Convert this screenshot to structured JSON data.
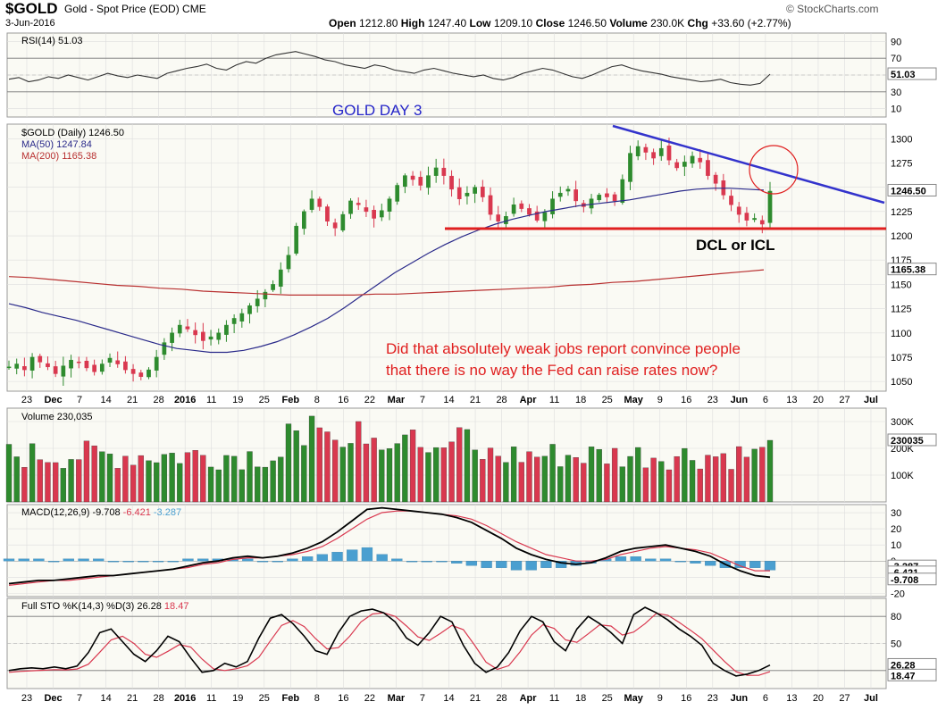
{
  "header": {
    "symbol": "$GOLD",
    "name": "Gold - Spot Price (EOD) CME",
    "date": "3-Jun-2016",
    "open_label": "Open",
    "open": "1212.80",
    "high_label": "High",
    "high": "1247.40",
    "low_label": "Low",
    "low": "1209.10",
    "close_label": "Close",
    "close": "1246.50",
    "volume_label": "Volume",
    "volume": "230.0K",
    "chg_label": "Chg",
    "chg": "+33.60 (+2.77%)",
    "brand": "© StockCharts.com"
  },
  "annotations": {
    "title": "GOLD DAY 3",
    "cycle": "DCL or ICL",
    "comment_line1": "Did that absolutely weak jobs report convince people",
    "comment_line2": "that there is no way the Fed can raise rates now?"
  },
  "colors": {
    "up": "#2e8b2e",
    "down": "#d9384f",
    "ma50": "#2a2a8a",
    "ma200": "#b83030",
    "annotation_red": "#e02020",
    "annotation_blue": "#2424c8",
    "macd_hist": "#4a9fd0",
    "panel_bg": "#fafaf4"
  },
  "chart_data": [
    {
      "type": "line",
      "title": "RSI(14) 51.03",
      "yticks": [
        90,
        70,
        50,
        30,
        10
      ],
      "ylim": [
        0,
        100
      ],
      "last_label": "51.03",
      "series": [
        {
          "name": "RSI(14)",
          "values": [
            45,
            47,
            42,
            44,
            48,
            46,
            50,
            47,
            44,
            48,
            52,
            49,
            47,
            50,
            48,
            46,
            52,
            55,
            58,
            60,
            63,
            58,
            56,
            62,
            66,
            64,
            70,
            74,
            76,
            78,
            75,
            72,
            68,
            66,
            62,
            60,
            58,
            62,
            60,
            56,
            54,
            52,
            56,
            58,
            55,
            52,
            50,
            48,
            50,
            46,
            44,
            47,
            52,
            55,
            58,
            56,
            52,
            48,
            46,
            50,
            55,
            60,
            62,
            58,
            55,
            53,
            51,
            48,
            46,
            44,
            42,
            43,
            45,
            41,
            39,
            38,
            40,
            51
          ]
        }
      ]
    },
    {
      "type": "line",
      "title": "$GOLD (Daily) 1246.50",
      "legend": [
        "$GOLD (Daily) 1246.50",
        "MA(50) 1247.84",
        "MA(200) 1165.38"
      ],
      "yticks": [
        1300,
        1275,
        1250,
        1225,
        1200,
        1175,
        1150,
        1125,
        1100,
        1075,
        1050
      ],
      "ylim": [
        1040,
        1315
      ],
      "x_tick_labels": [
        "23",
        "Dec",
        "7",
        "14",
        "21",
        "28",
        "2016",
        "11",
        "19",
        "25",
        "Feb",
        "8",
        "16",
        "22",
        "Mar",
        "7",
        "14",
        "21",
        "28",
        "Apr",
        "11",
        "18",
        "25",
        "May",
        "9",
        "16",
        "23",
        "Jun",
        "6",
        "13",
        "20",
        "27",
        "Jul"
      ],
      "price_label": "1246.50",
      "ma200_label": "1165.38",
      "series": [
        {
          "name": "MA(50)",
          "values": [
            1130,
            1126,
            1121,
            1117,
            1113,
            1108,
            1103,
            1098,
            1093,
            1088,
            1084,
            1082,
            1080,
            1080,
            1082,
            1086,
            1091,
            1098,
            1106,
            1115,
            1126,
            1138,
            1150,
            1162,
            1172,
            1182,
            1191,
            1199,
            1206,
            1212,
            1217,
            1221,
            1225,
            1228,
            1231,
            1233,
            1235,
            1237,
            1240,
            1243,
            1246,
            1248,
            1249,
            1249,
            1248,
            1247
          ]
        },
        {
          "name": "MA(200)",
          "values": [
            1158,
            1157,
            1155,
            1153,
            1151,
            1149,
            1148,
            1146,
            1145,
            1143,
            1142,
            1141,
            1140,
            1139,
            1139,
            1139,
            1139,
            1140,
            1140,
            1141,
            1142,
            1143,
            1144,
            1145,
            1146,
            1147,
            1149,
            1150,
            1152,
            1153,
            1155,
            1157,
            1159,
            1161,
            1163,
            1165
          ]
        }
      ]
    },
    {
      "type": "bar",
      "title": "Volume 230,035",
      "yticks": [
        "300K",
        "200K",
        "100K"
      ],
      "ylim": [
        0,
        350000
      ],
      "last_label": "230035"
    },
    {
      "type": "line",
      "title": "MACD(12,26,9) -9.708, -6.421, -3.287",
      "legend": [
        "MACD(12,26,9) -9.708",
        "-6.421",
        "-3.287"
      ],
      "yticks": [
        30,
        20,
        10,
        0,
        -10,
        -20
      ],
      "ylim": [
        -22,
        35
      ],
      "last_labels": [
        "-3.287",
        "-6.421",
        "-9.708"
      ]
    },
    {
      "type": "line",
      "title": "Full STO %K(14,3) %D(3) 26.28, 18.47",
      "legend": [
        "Full STO %K(14,3) %D(3) 26.28",
        "18.47"
      ],
      "yticks": [
        80,
        50,
        20
      ],
      "ylim": [
        0,
        100
      ],
      "last_labels": [
        "26.28",
        "18.47"
      ]
    }
  ]
}
